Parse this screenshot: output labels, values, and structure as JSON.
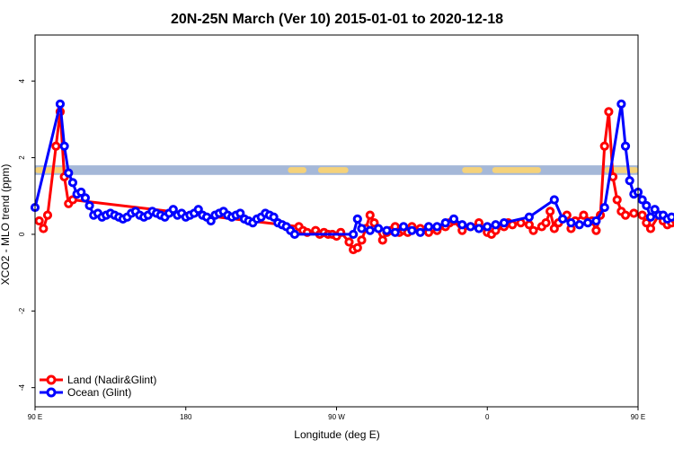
{
  "chart_data": {
    "type": "line",
    "title": "20N-25N March (Ver 10)   2015-01-01 to 2020-12-18",
    "xlabel": "Longitude (deg E)",
    "ylabel": "XCO2 - MLO trend (ppm)",
    "xlim": [
      90,
      450
    ],
    "ylim": [
      -4.5,
      5.2
    ],
    "x_ticks": [
      {
        "value": 90,
        "label": "90 E"
      },
      {
        "value": 180,
        "label": "180"
      },
      {
        "value": 270,
        "label": "90 W"
      },
      {
        "value": 360,
        "label": "0"
      },
      {
        "value": 450,
        "label": "90 E"
      },
      {
        "value": 540,
        "label": "180"
      }
    ],
    "y_ticks": [
      {
        "value": -4,
        "label": "-4"
      },
      {
        "value": -2,
        "label": "-2"
      },
      {
        "value": 0,
        "label": "0"
      },
      {
        "value": 2,
        "label": "2"
      },
      {
        "value": 4,
        "label": "4"
      }
    ],
    "grid": false,
    "legend_position": "bottom-left",
    "land_ocean_band": {
      "y_range": [
        1.55,
        1.8
      ],
      "ocean_color": "#a5b8d8",
      "land_color": "#f5d27a"
    },
    "series": [
      {
        "name": "Land (Nadir&Glint)",
        "color": "#ff0000",
        "x": [
          92.5,
          95,
          97.5,
          102.5,
          105,
          107.5,
          110,
          112.5,
          247.5,
          250,
          252.5,
          257.5,
          260,
          262.5,
          265,
          267.5,
          270,
          272.5,
          277.5,
          280,
          282.5,
          285,
          287.5,
          290,
          292.5,
          297.5,
          300,
          302.5,
          305,
          307.5,
          310,
          312.5,
          315,
          320,
          325,
          330,
          335,
          337.5,
          340,
          345,
          350,
          355,
          360,
          362.5,
          365,
          370,
          372.5,
          375,
          380,
          385,
          387.5,
          392.5,
          395,
          397.5,
          400,
          402.5,
          407.5,
          410,
          412.5,
          417.5,
          422.5,
          425,
          427.5,
          430,
          432.5,
          435,
          437.5,
          440,
          442.5,
          447.5,
          452.5,
          455,
          457.5,
          462.5,
          465,
          467.5,
          470,
          472.5
        ],
        "y": [
          0.35,
          0.15,
          0.5,
          2.3,
          3.2,
          1.5,
          0.8,
          0.9,
          0.2,
          0.1,
          0.05,
          0.1,
          0.0,
          0.05,
          0.0,
          0.0,
          -0.05,
          0.05,
          -0.2,
          -0.4,
          -0.35,
          -0.15,
          0.15,
          0.5,
          0.3,
          -0.15,
          0.05,
          0.1,
          0.2,
          0.05,
          0.1,
          0.05,
          0.2,
          0.15,
          0.05,
          0.1,
          0.2,
          0.3,
          0.35,
          0.1,
          0.2,
          0.3,
          0.05,
          0.0,
          0.1,
          0.2,
          0.3,
          0.25,
          0.3,
          0.25,
          0.1,
          0.2,
          0.3,
          0.6,
          0.15,
          0.3,
          0.5,
          0.15,
          0.35,
          0.5,
          0.35,
          0.1,
          0.5,
          2.3,
          3.2,
          1.5,
          0.9,
          0.6,
          0.5,
          0.55,
          0.5,
          0.3,
          0.15,
          0.5,
          0.35,
          0.25,
          0.3,
          0.35
        ]
      },
      {
        "name": "Ocean (Glint)",
        "color": "#0000ff",
        "x": [
          90,
          105,
          107.5,
          110,
          112.5,
          115,
          117.5,
          120,
          122.5,
          125,
          127.5,
          130,
          132.5,
          135,
          137.5,
          140,
          142.5,
          145,
          147.5,
          150,
          152.5,
          155,
          157.5,
          160,
          162.5,
          165,
          167.5,
          170,
          172.5,
          175,
          177.5,
          180,
          182.5,
          185,
          187.5,
          190,
          192.5,
          195,
          197.5,
          200,
          202.5,
          205,
          207.5,
          210,
          212.5,
          215,
          217.5,
          220,
          222.5,
          225,
          227.5,
          230,
          232.5,
          235,
          237.5,
          240,
          242.5,
          245,
          280,
          282.5,
          285,
          290,
          295,
          300,
          305,
          310,
          315,
          320,
          325,
          330,
          335,
          340,
          345,
          350,
          355,
          360,
          365,
          370,
          385,
          400,
          405,
          410,
          415,
          420,
          425,
          430,
          440,
          442.5,
          445,
          447.5,
          450,
          452.5,
          455,
          457.5,
          460,
          462.5,
          465,
          467.5,
          470,
          475
        ],
        "y": [
          0.7,
          3.4,
          2.3,
          1.6,
          1.35,
          1.05,
          1.1,
          0.95,
          0.75,
          0.5,
          0.55,
          0.45,
          0.5,
          0.55,
          0.5,
          0.45,
          0.4,
          0.45,
          0.55,
          0.6,
          0.5,
          0.45,
          0.5,
          0.6,
          0.55,
          0.5,
          0.45,
          0.55,
          0.65,
          0.5,
          0.55,
          0.45,
          0.5,
          0.55,
          0.65,
          0.5,
          0.45,
          0.35,
          0.5,
          0.55,
          0.6,
          0.5,
          0.45,
          0.5,
          0.55,
          0.4,
          0.35,
          0.3,
          0.4,
          0.45,
          0.55,
          0.5,
          0.45,
          0.3,
          0.25,
          0.2,
          0.1,
          0.0,
          0.0,
          0.4,
          0.15,
          0.1,
          0.15,
          0.1,
          0.05,
          0.2,
          0.1,
          0.05,
          0.2,
          0.2,
          0.3,
          0.4,
          0.25,
          0.2,
          0.15,
          0.2,
          0.25,
          0.3,
          0.45,
          0.9,
          0.4,
          0.3,
          0.25,
          0.3,
          0.35,
          0.7,
          3.4,
          2.3,
          1.4,
          1.05,
          1.1,
          0.9,
          0.75,
          0.45,
          0.65,
          0.5,
          0.5,
          0.4,
          0.45,
          0.6
        ]
      }
    ]
  }
}
